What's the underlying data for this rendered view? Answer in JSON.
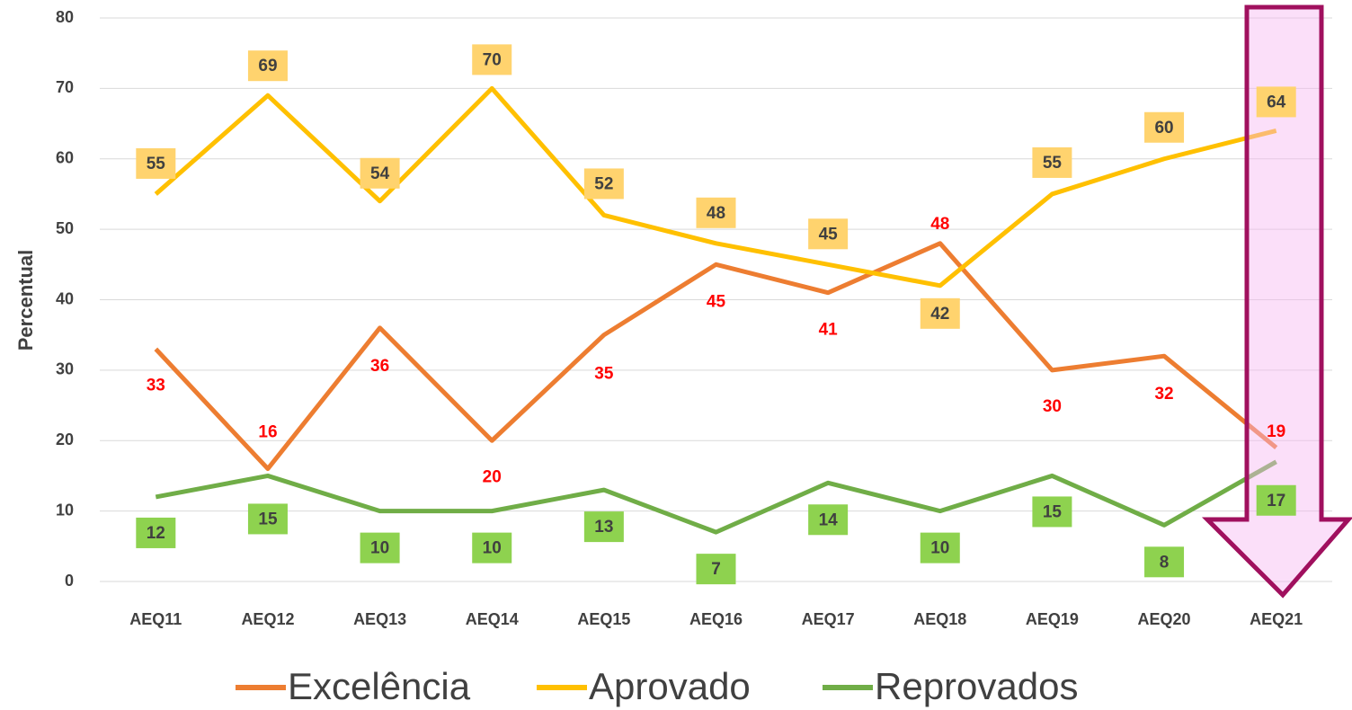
{
  "chart_data": {
    "type": "line",
    "y_label": "Percentual",
    "categories": [
      "AEQ11",
      "AEQ12",
      "AEQ13",
      "AEQ14",
      "AEQ15",
      "AEQ16",
      "AEQ17",
      "AEQ18",
      "AEQ19",
      "AEQ20",
      "AEQ21"
    ],
    "series": [
      {
        "name": "Excelência",
        "color": "#ED7D31",
        "values": [
          33,
          16,
          36,
          20,
          35,
          45,
          41,
          48,
          30,
          32,
          19
        ]
      },
      {
        "name": "Aprovado",
        "color": "#FFC000",
        "values": [
          55,
          69,
          54,
          70,
          52,
          48,
          45,
          42,
          55,
          60,
          64
        ]
      },
      {
        "name": "Reprovados",
        "color": "#70AD47",
        "values": [
          12,
          15,
          10,
          10,
          13,
          7,
          14,
          10,
          15,
          8,
          17
        ]
      }
    ],
    "ylim": [
      0,
      80
    ],
    "yticks": [
      0,
      10,
      20,
      30,
      40,
      50,
      60,
      70,
      80
    ],
    "grid": true,
    "legend": "bottom"
  }
}
